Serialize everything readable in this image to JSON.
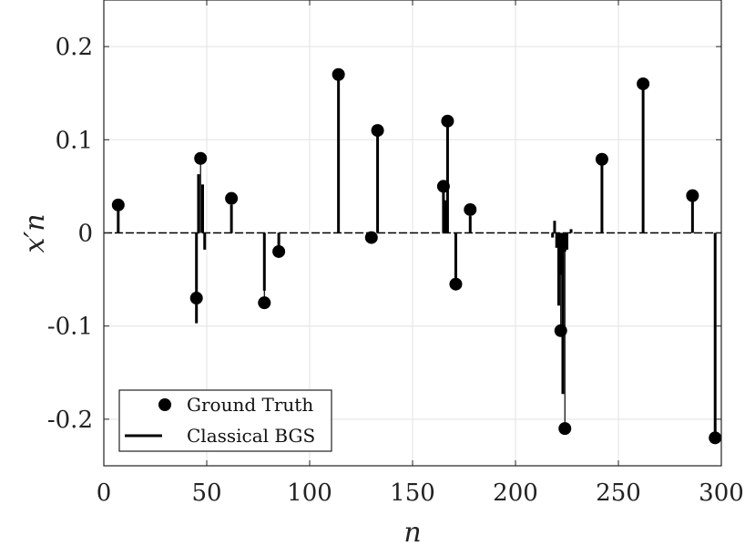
{
  "chart_data": {
    "type": "stem",
    "xlabel": "n",
    "ylabel": "x′n",
    "xlim": [
      0,
      300
    ],
    "ylim": [
      -0.25,
      0.25
    ],
    "xticks": [
      0,
      50,
      100,
      150,
      200,
      250,
      300
    ],
    "yticks": [
      -0.2,
      -0.1,
      0,
      0.1,
      0.2
    ],
    "xtick_labels": [
      "0",
      "50",
      "100",
      "150",
      "200",
      "250",
      "300"
    ],
    "ytick_labels": [
      "-0.2",
      "-0.1",
      "0",
      "0.1",
      "0.2"
    ],
    "grid": true,
    "legend_position": "bottom-left",
    "series": [
      {
        "name": "Ground Truth",
        "marker": "filled-circle",
        "color": "#000000",
        "x": [
          7,
          45,
          47,
          62,
          78,
          85,
          114,
          130,
          133,
          165,
          167,
          171,
          178,
          222,
          224,
          242,
          262,
          286,
          297
        ],
        "y": [
          0.03,
          -0.07,
          0.08,
          0.037,
          -0.075,
          -0.02,
          0.17,
          -0.005,
          0.11,
          0.05,
          0.12,
          -0.055,
          0.025,
          -0.105,
          -0.21,
          0.079,
          0.16,
          0.04,
          -0.22
        ]
      },
      {
        "name": "Classical BGS",
        "marker": "stem-line",
        "color": "#000000",
        "x": [
          7,
          45,
          46,
          48,
          49,
          62,
          78,
          85,
          114,
          130,
          133,
          165,
          166,
          167,
          171,
          178,
          218,
          219,
          220,
          221,
          222,
          223,
          224,
          225,
          227,
          242,
          262,
          286,
          297
        ],
        "y": [
          0.028,
          -0.097,
          0.063,
          0.052,
          -0.018,
          0.03,
          -0.062,
          -0.014,
          0.17,
          -0.005,
          0.11,
          0.05,
          0.035,
          0.12,
          -0.055,
          0.018,
          -0.005,
          0.013,
          -0.016,
          -0.078,
          -0.045,
          -0.173,
          -0.02,
          -0.018,
          0.004,
          0.079,
          0.16,
          0.035,
          -0.22
        ]
      }
    ],
    "legend": {
      "entries": [
        "Ground Truth",
        "Classical BGS"
      ]
    }
  }
}
